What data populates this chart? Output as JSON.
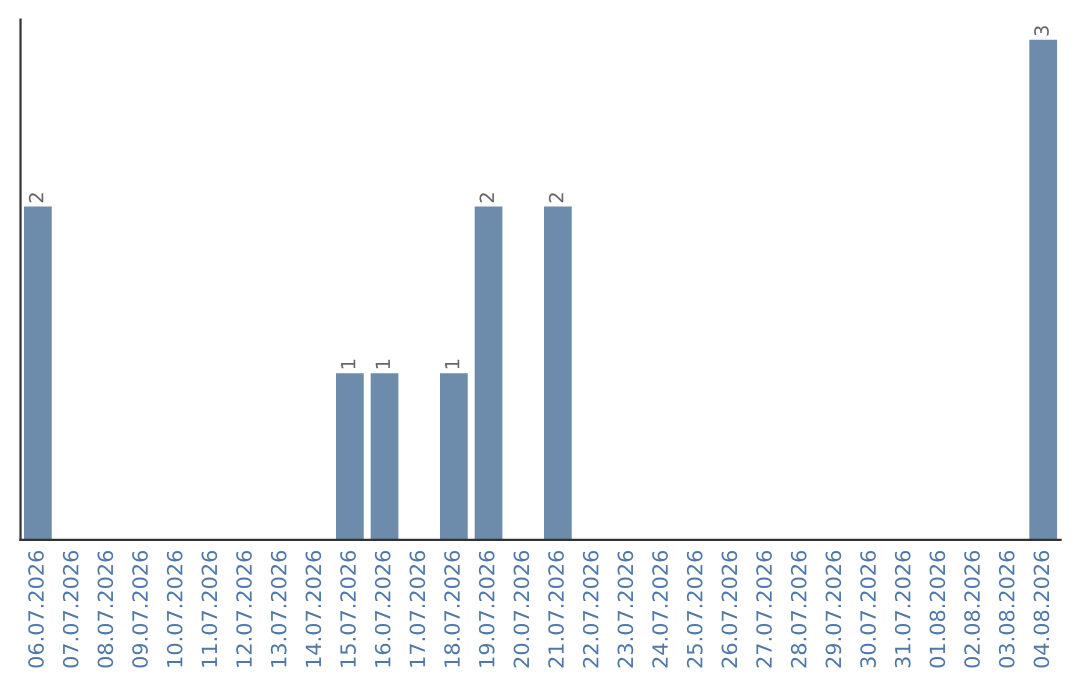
{
  "chart_data": {
    "type": "bar",
    "categories": [
      "06.07.2026",
      "07.07.2026",
      "08.07.2026",
      "09.07.2026",
      "10.07.2026",
      "11.07.2026",
      "12.07.2026",
      "13.07.2026",
      "14.07.2026",
      "15.07.2026",
      "16.07.2026",
      "17.07.2026",
      "18.07.2026",
      "19.07.2026",
      "20.07.2026",
      "21.07.2026",
      "22.07.2026",
      "23.07.2026",
      "24.07.2026",
      "25.07.2026",
      "26.07.2026",
      "27.07.2026",
      "28.07.2026",
      "29.07.2026",
      "30.07.2026",
      "31.07.2026",
      "01.08.2026",
      "02.08.2026",
      "03.08.2026",
      "04.08.2026"
    ],
    "values": [
      2,
      0,
      0,
      0,
      0,
      0,
      0,
      0,
      0,
      1,
      1,
      0,
      1,
      2,
      0,
      2,
      0,
      0,
      0,
      0,
      0,
      0,
      0,
      0,
      0,
      0,
      0,
      0,
      0,
      3
    ],
    "value_labels": [
      "2",
      null,
      null,
      null,
      null,
      null,
      null,
      null,
      null,
      "1",
      "1",
      null,
      "1",
      "2",
      null,
      "2",
      null,
      null,
      null,
      null,
      null,
      null,
      null,
      null,
      null,
      null,
      null,
      null,
      null,
      "3"
    ],
    "color": "#6d8cab",
    "tick_labels": "x",
    "grid": false,
    "legend": false
  }
}
